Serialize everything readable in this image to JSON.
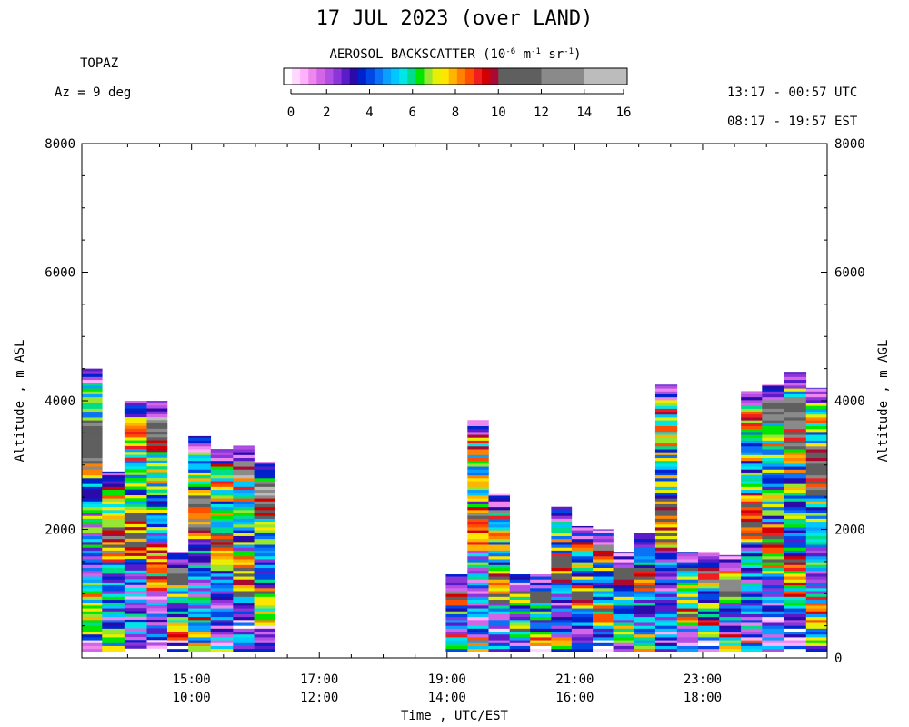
{
  "header": {
    "title": "17 JUL 2023 (over LAND)",
    "instrument": "TOPAZ",
    "azimuth_label": "Az =",
    "azimuth_value": "9 deg",
    "utc_range": "13:17 - 00:57 UTC",
    "local_range": "08:17 - 19:57 EST",
    "colorbar_title_prefix": "AEROSOL BACKSCATTER (10",
    "colorbar_exp1": "-6",
    "colorbar_unit1": " m",
    "colorbar_exp2": "-1",
    "colorbar_unit2": " sr",
    "colorbar_exp3": "-1",
    "colorbar_close": ")"
  },
  "colors": {
    "palette": [
      "#ffffff",
      "#ffd8ff",
      "#ffb0ff",
      "#ee88ee",
      "#d266e6",
      "#b24fe2",
      "#8c35d8",
      "#5a1bc8",
      "#2a0aa8",
      "#0022cc",
      "#0048e6",
      "#0a72f4",
      "#0aa0ff",
      "#00c8ff",
      "#00e6e6",
      "#00dc8c",
      "#00e600",
      "#96e632",
      "#e6f000",
      "#ffe600",
      "#ffb400",
      "#ff8200",
      "#ff5000",
      "#f01e1e",
      "#d20000",
      "#aa0a32",
      "#646464",
      "#8c8c8c",
      "#b4b4b4"
    ],
    "grey_bands": [
      "#5f5f5f",
      "#8a8a8a",
      "#bcbcbc"
    ]
  },
  "chart_data": {
    "type": "heatmap",
    "title": "17 JUL 2023 (over LAND)",
    "xlabel": "Time , UTC/EST",
    "ylabel_left": "Altitude , m ASL",
    "ylabel_right": "Altitude , m AGL",
    "x_range_utc_hours": [
      13.283,
      24.95
    ],
    "ylim": [
      0,
      8000
    ],
    "yticks_left": [
      "8000",
      "6000",
      "4000",
      "2000"
    ],
    "yticks_right": [
      "8000",
      "6000",
      "4000",
      "2000",
      "0"
    ],
    "xticks": [
      {
        "utc": "15:00",
        "est": "10:00",
        "hour": 15
      },
      {
        "utc": "17:00",
        "est": "12:00",
        "hour": 17
      },
      {
        "utc": "19:00",
        "est": "14:00",
        "hour": 19
      },
      {
        "utc": "21:00",
        "est": "16:00",
        "hour": 21
      },
      {
        "utc": "23:00",
        "est": "18:00",
        "hour": 23
      }
    ],
    "colorbar": {
      "min": 0,
      "max": 16,
      "tick_labels": [
        "0",
        "2",
        "4",
        "6",
        "8",
        "10",
        "12",
        "14",
        "16"
      ]
    },
    "profiles": [
      {
        "start": 13.283,
        "end": 13.6,
        "top": 4500,
        "bottom": 100
      },
      {
        "start": 13.6,
        "end": 13.95,
        "top": 2900,
        "bottom": 100
      },
      {
        "start": 13.95,
        "end": 14.3,
        "top": 4000,
        "bottom": 150
      },
      {
        "start": 14.3,
        "end": 14.62,
        "top": 4000,
        "bottom": 150
      },
      {
        "start": 14.62,
        "end": 14.95,
        "top": 1650,
        "bottom": 100
      },
      {
        "start": 14.95,
        "end": 15.3,
        "top": 3450,
        "bottom": 100
      },
      {
        "start": 15.3,
        "end": 15.65,
        "top": 3250,
        "bottom": 100
      },
      {
        "start": 15.65,
        "end": 15.98,
        "top": 3300,
        "bottom": 100
      },
      {
        "start": 15.98,
        "end": 16.3,
        "top": 3050,
        "bottom": 100
      },
      {
        "start": 18.98,
        "end": 19.32,
        "top": 1300,
        "bottom": 100
      },
      {
        "start": 19.32,
        "end": 19.65,
        "top": 3700,
        "bottom": 100
      },
      {
        "start": 19.65,
        "end": 19.98,
        "top": 2550,
        "bottom": 100
      },
      {
        "start": 19.98,
        "end": 20.3,
        "top": 1300,
        "bottom": 100
      },
      {
        "start": 20.3,
        "end": 20.63,
        "top": 1300,
        "bottom": 100
      },
      {
        "start": 20.63,
        "end": 20.95,
        "top": 2350,
        "bottom": 100
      },
      {
        "start": 20.95,
        "end": 21.28,
        "top": 2050,
        "bottom": 100
      },
      {
        "start": 21.28,
        "end": 21.6,
        "top": 2000,
        "bottom": 100
      },
      {
        "start": 21.6,
        "end": 21.93,
        "top": 1650,
        "bottom": 100
      },
      {
        "start": 21.93,
        "end": 22.26,
        "top": 1950,
        "bottom": 100
      },
      {
        "start": 22.26,
        "end": 22.6,
        "top": 4250,
        "bottom": 100
      },
      {
        "start": 22.6,
        "end": 22.93,
        "top": 1650,
        "bottom": 100
      },
      {
        "start": 22.93,
        "end": 23.26,
        "top": 1650,
        "bottom": 100
      },
      {
        "start": 23.26,
        "end": 23.6,
        "top": 1600,
        "bottom": 100
      },
      {
        "start": 23.6,
        "end": 23.93,
        "top": 4150,
        "bottom": 100
      },
      {
        "start": 23.93,
        "end": 24.28,
        "top": 4250,
        "bottom": 100
      },
      {
        "start": 24.28,
        "end": 24.62,
        "top": 4450,
        "bottom": 100
      },
      {
        "start": 24.62,
        "end": 24.95,
        "top": 4200,
        "bottom": 100
      }
    ]
  }
}
